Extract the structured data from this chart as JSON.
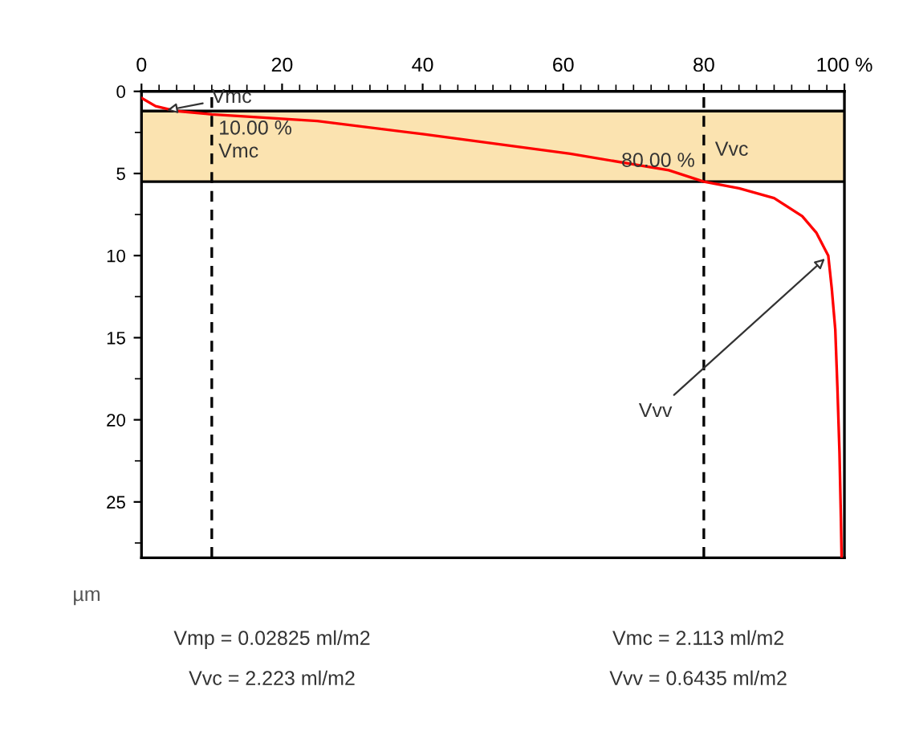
{
  "chart_data": {
    "type": "line",
    "ylabel": "µm",
    "x": [
      0,
      2,
      5,
      10,
      25,
      40,
      61,
      75,
      80,
      85,
      90,
      94,
      96,
      97.7,
      98.2,
      98.7,
      99,
      99.3,
      99.5,
      99.6
    ],
    "series": [
      {
        "color": "#ff0000",
        "values": [
          0.4,
          0.9,
          1.2,
          1.4,
          1.8,
          2.6,
          3.8,
          4.8,
          5.5,
          5.9,
          6.5,
          7.6,
          8.6,
          10,
          12,
          14.5,
          18,
          22,
          26,
          28.4
        ]
      }
    ],
    "xlim": [
      0,
      100
    ],
    "xticks": [
      0,
      20,
      40,
      60,
      80,
      {
        "value": 100,
        "label": "100 %"
      }
    ],
    "ylim": [
      28.4,
      0
    ],
    "yticks": [
      0,
      5,
      10,
      15,
      20,
      25
    ],
    "bands": [
      {
        "axis": "y",
        "from": 1.2,
        "to": 5.5,
        "color": "#fbe3b0"
      }
    ],
    "ref_lines": [
      {
        "axis": "x",
        "value": 10,
        "line_style": "dashed",
        "color": "#000000"
      },
      {
        "axis": "x",
        "value": 80,
        "line_style": "dashed",
        "color": "#000000"
      },
      {
        "axis": "y",
        "value": 1.2,
        "line_style": "solid",
        "color": "#000000"
      },
      {
        "axis": "y",
        "value": 5.5,
        "line_style": "solid",
        "color": "#000000"
      }
    ],
    "annotations": [
      {
        "text": "Vmc",
        "x": 3,
        "y": 1.2
      },
      {
        "text": "Vvv",
        "x": 97.7,
        "y": 10
      },
      {
        "text": "10.00 %",
        "x": 10,
        "y": 1.9
      },
      {
        "text": "Vmc",
        "x": 10,
        "y": 3.3
      },
      {
        "text": "80.00 %",
        "x": 80,
        "y": 5.5
      },
      {
        "text": "Vvc",
        "x": 80,
        "y": 3.6
      },
      "Vmp = 0.02825 ml/m2",
      "Vmc = 2.113 ml/m2",
      "Vvc = 2.223 ml/m2",
      "Vvv = 0.6435 ml/m2"
    ],
    "grid": false,
    "legend": false
  }
}
